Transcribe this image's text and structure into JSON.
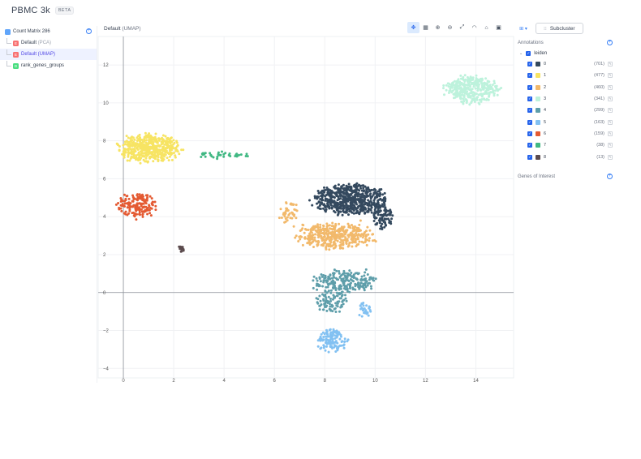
{
  "app": {
    "title": "PBMC 3k",
    "badge": "BETA"
  },
  "sidebar": {
    "root": {
      "label": "Count Matrix 286"
    },
    "items": [
      {
        "badge": "E",
        "label": "Default",
        "suffix": "(PCA)"
      },
      {
        "badge": "E",
        "label": "Default (UMAP)",
        "suffix": ""
      },
      {
        "badge": "D",
        "label": "rank_genes_groups",
        "suffix": ""
      }
    ]
  },
  "plot": {
    "title": "Default",
    "subtitle": "(UMAP)",
    "tools": [
      "pan",
      "box-select",
      "zoom-in",
      "zoom-out",
      "autoscale",
      "lasso",
      "reset",
      "camera",
      "crop"
    ]
  },
  "controls": {
    "subcluster_label": "Subcluster"
  },
  "annotations": {
    "title": "Annotations",
    "group": "leiden",
    "clusters": [
      {
        "label": "0",
        "count": "(701)",
        "color": "#34495e"
      },
      {
        "label": "1",
        "count": "(477)",
        "color": "#f7e463"
      },
      {
        "label": "2",
        "count": "(460)",
        "color": "#f2b96b"
      },
      {
        "label": "3",
        "count": "(341)",
        "color": "#bdf2dc"
      },
      {
        "label": "4",
        "count": "(299)",
        "color": "#5e9eaa"
      },
      {
        "label": "5",
        "count": "(163)",
        "color": "#82c1f2"
      },
      {
        "label": "6",
        "count": "(159)",
        "color": "#e45a32"
      },
      {
        "label": "7",
        "count": "(38)",
        "color": "#41b883"
      },
      {
        "label": "8",
        "count": "(13)",
        "color": "#5b4a4d"
      }
    ]
  },
  "genes": {
    "title": "Genes of Interest"
  },
  "chart_data": {
    "type": "scatter",
    "xlim": [
      -1,
      15.5
    ],
    "ylim": [
      -4.5,
      13.5
    ],
    "xticks": [
      0,
      2,
      4,
      6,
      8,
      10,
      12,
      14
    ],
    "yticks": [
      -4,
      -2,
      0,
      2,
      4,
      6,
      8,
      10,
      12
    ],
    "grid": true,
    "clusters": [
      {
        "name": "0",
        "count": 701,
        "color": "#34495e",
        "blobs": [
          [
            9.0,
            4.9,
            1.3,
            0.75,
            1.0
          ],
          [
            10.3,
            3.9,
            0.4,
            0.5,
            0.12
          ]
        ]
      },
      {
        "name": "1",
        "count": 477,
        "color": "#f7e463",
        "blobs": [
          [
            1.0,
            7.6,
            1.1,
            0.7,
            1.0
          ]
        ]
      },
      {
        "name": "2",
        "count": 460,
        "color": "#f2b96b",
        "blobs": [
          [
            8.4,
            3.0,
            1.4,
            0.65,
            1.0
          ],
          [
            6.6,
            4.2,
            0.4,
            0.6,
            0.1
          ]
        ]
      },
      {
        "name": "3",
        "count": 341,
        "color": "#bdf2dc",
        "blobs": [
          [
            13.8,
            10.7,
            1.0,
            0.65,
            1.0
          ]
        ]
      },
      {
        "name": "4",
        "count": 299,
        "color": "#5e9eaa",
        "blobs": [
          [
            8.8,
            0.6,
            1.2,
            0.55,
            0.7
          ],
          [
            8.2,
            -0.4,
            0.6,
            0.6,
            0.3
          ]
        ]
      },
      {
        "name": "5",
        "count": 163,
        "color": "#82c1f2",
        "blobs": [
          [
            8.3,
            -2.5,
            0.55,
            0.55,
            0.8
          ],
          [
            9.6,
            -0.9,
            0.25,
            0.4,
            0.2
          ]
        ]
      },
      {
        "name": "6",
        "count": 159,
        "color": "#e45a32",
        "blobs": [
          [
            0.55,
            4.6,
            0.75,
            0.6,
            1.0
          ]
        ]
      },
      {
        "name": "7",
        "count": 38,
        "color": "#41b883",
        "blobs": [
          [
            3.9,
            7.25,
            1.0,
            0.18,
            1.0
          ]
        ]
      },
      {
        "name": "8",
        "count": 13,
        "color": "#5b4a4d",
        "blobs": [
          [
            2.3,
            2.3,
            0.1,
            0.18,
            1.0
          ]
        ]
      }
    ]
  }
}
